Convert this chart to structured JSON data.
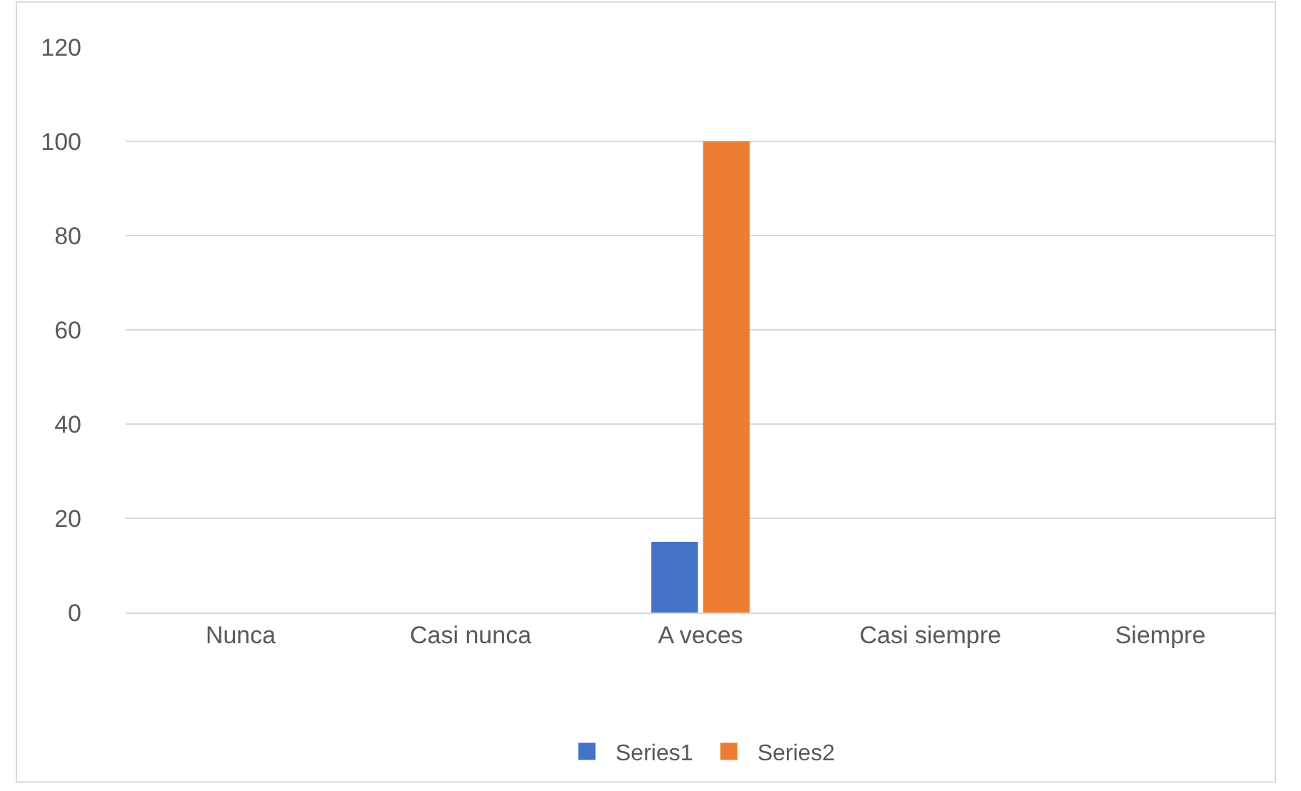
{
  "chart_data": {
    "type": "bar",
    "categories": [
      "Nunca",
      "Casi nunca",
      "A veces",
      "Casi siempre",
      "Siempre"
    ],
    "series": [
      {
        "name": "Series1",
        "color": "#4472c4",
        "values": [
          0,
          0,
          15,
          0,
          0
        ]
      },
      {
        "name": "Series2",
        "color": "#ed7d31",
        "values": [
          0,
          0,
          100,
          0,
          0
        ]
      }
    ],
    "ylim": [
      0,
      120
    ],
    "yticks": [
      0,
      20,
      40,
      60,
      80,
      100,
      120
    ],
    "grid": "y",
    "legend": "bottom"
  }
}
